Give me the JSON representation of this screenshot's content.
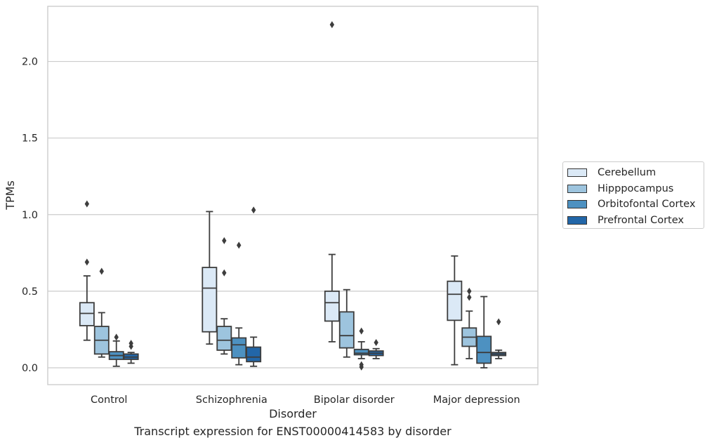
{
  "chart_data": {
    "type": "box",
    "caption": "Transcript expression for ENST00000414583 by disorder",
    "xlabel": "Disorder",
    "ylabel": "TPMs",
    "ylim": [
      -0.11,
      2.36
    ],
    "yticks": [
      0.0,
      0.5,
      1.0,
      1.5,
      2.0
    ],
    "ytick_labels": [
      "0.0",
      "0.5",
      "1.0",
      "1.5",
      "2.0"
    ],
    "grid": "horizontal",
    "legend_position": "right",
    "categories": [
      "Control",
      "Schizophrenia",
      "Bipolar disorder",
      "Major depression"
    ],
    "series": [
      {
        "name": "Cerebellum",
        "color": "#dbe9f6",
        "boxes": [
          {
            "whislo": 0.18,
            "q1": 0.275,
            "med": 0.355,
            "q3": 0.425,
            "whishi": 0.6,
            "fliers": [
              0.69,
              1.07
            ]
          },
          {
            "whislo": 0.155,
            "q1": 0.235,
            "med": 0.52,
            "q3": 0.655,
            "whishi": 1.02,
            "fliers": []
          },
          {
            "whislo": 0.17,
            "q1": 0.305,
            "med": 0.425,
            "q3": 0.5,
            "whishi": 0.74,
            "fliers": [
              2.24
            ]
          },
          {
            "whislo": 0.02,
            "q1": 0.31,
            "med": 0.48,
            "q3": 0.565,
            "whishi": 0.73,
            "fliers": []
          }
        ]
      },
      {
        "name": "Hipppocampus",
        "color": "#9dc4de",
        "boxes": [
          {
            "whislo": 0.07,
            "q1": 0.09,
            "med": 0.18,
            "q3": 0.27,
            "whishi": 0.36,
            "fliers": [
              0.63
            ]
          },
          {
            "whislo": 0.09,
            "q1": 0.115,
            "med": 0.18,
            "q3": 0.27,
            "whishi": 0.32,
            "fliers": [
              0.62,
              0.83
            ]
          },
          {
            "whislo": 0.07,
            "q1": 0.13,
            "med": 0.21,
            "q3": 0.365,
            "whishi": 0.51,
            "fliers": []
          },
          {
            "whislo": 0.06,
            "q1": 0.14,
            "med": 0.2,
            "q3": 0.26,
            "whishi": 0.37,
            "fliers": [
              0.46,
              0.5
            ]
          }
        ]
      },
      {
        "name": "Orbitofontal Cortex",
        "color": "#4d91c1",
        "boxes": [
          {
            "whislo": 0.01,
            "q1": 0.055,
            "med": 0.08,
            "q3": 0.105,
            "whishi": 0.175,
            "fliers": [
              0.2
            ]
          },
          {
            "whislo": 0.02,
            "q1": 0.065,
            "med": 0.15,
            "q3": 0.195,
            "whishi": 0.26,
            "fliers": [
              0.8
            ]
          },
          {
            "whislo": 0.06,
            "q1": 0.085,
            "med": 0.095,
            "q3": 0.12,
            "whishi": 0.17,
            "fliers": [
              0.005,
              0.02,
              0.24
            ]
          },
          {
            "whislo": 0.0,
            "q1": 0.03,
            "med": 0.1,
            "q3": 0.205,
            "whishi": 0.465,
            "fliers": []
          }
        ]
      },
      {
        "name": "Prefrontal Cortex",
        "color": "#2266a8",
        "boxes": [
          {
            "whislo": 0.03,
            "q1": 0.055,
            "med": 0.07,
            "q3": 0.09,
            "whishi": 0.1,
            "fliers": [
              0.14,
              0.16
            ]
          },
          {
            "whislo": 0.01,
            "q1": 0.04,
            "med": 0.07,
            "q3": 0.135,
            "whishi": 0.2,
            "fliers": [
              1.03
            ]
          },
          {
            "whislo": 0.06,
            "q1": 0.08,
            "med": 0.095,
            "q3": 0.11,
            "whishi": 0.125,
            "fliers": [
              0.165
            ]
          },
          {
            "whislo": 0.06,
            "q1": 0.08,
            "med": 0.09,
            "q3": 0.1,
            "whishi": 0.115,
            "fliers": [
              0.3
            ]
          }
        ]
      }
    ]
  }
}
